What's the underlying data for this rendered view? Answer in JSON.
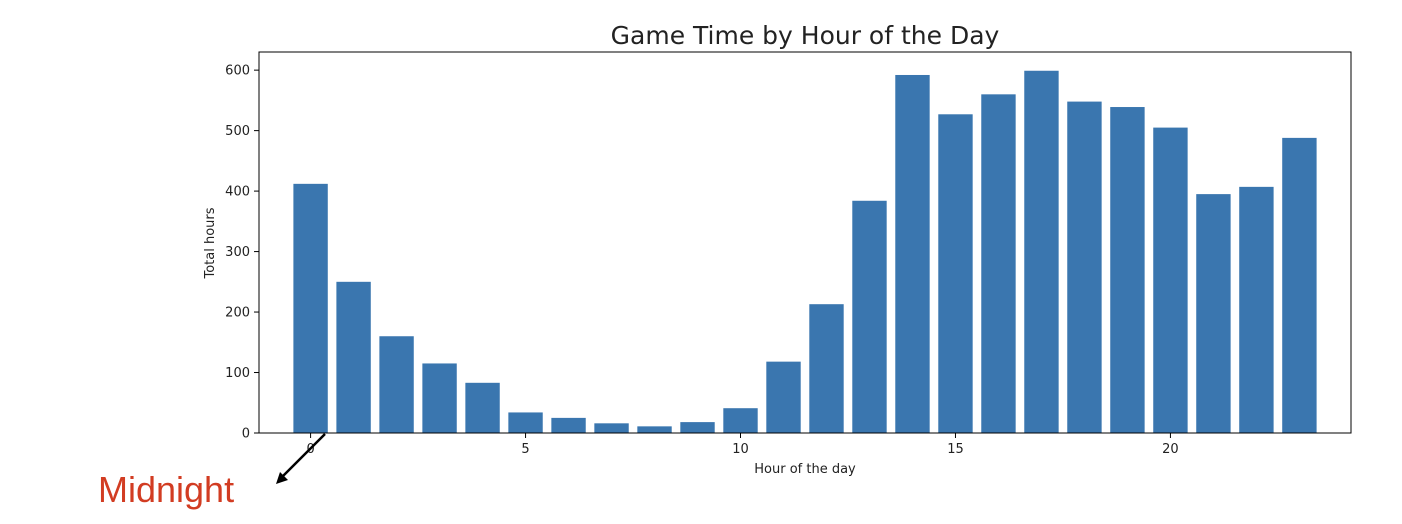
{
  "chart_data": {
    "type": "bar",
    "title": "Game Time by Hour of the Day",
    "xlabel": "Hour of the day",
    "ylabel": "Total hours",
    "x": [
      0,
      1,
      2,
      3,
      4,
      5,
      6,
      7,
      8,
      9,
      10,
      11,
      12,
      13,
      14,
      15,
      16,
      17,
      18,
      19,
      20,
      21,
      22,
      23
    ],
    "values": [
      412,
      250,
      160,
      115,
      83,
      34,
      25,
      16,
      11,
      18,
      41,
      118,
      213,
      384,
      592,
      527,
      560,
      599,
      548,
      539,
      505,
      395,
      407,
      488
    ],
    "xlim": [
      -1.2,
      24.2
    ],
    "ylim": [
      0,
      630
    ],
    "xticks": [
      0,
      5,
      10,
      15,
      20
    ],
    "yticks": [
      0,
      100,
      200,
      300,
      400,
      500,
      600
    ],
    "bar_color": "#3a76af",
    "grid": false,
    "annotations": [
      {
        "text": "Midnight",
        "color": "#d23c22",
        "points_to_x": 0
      }
    ]
  }
}
